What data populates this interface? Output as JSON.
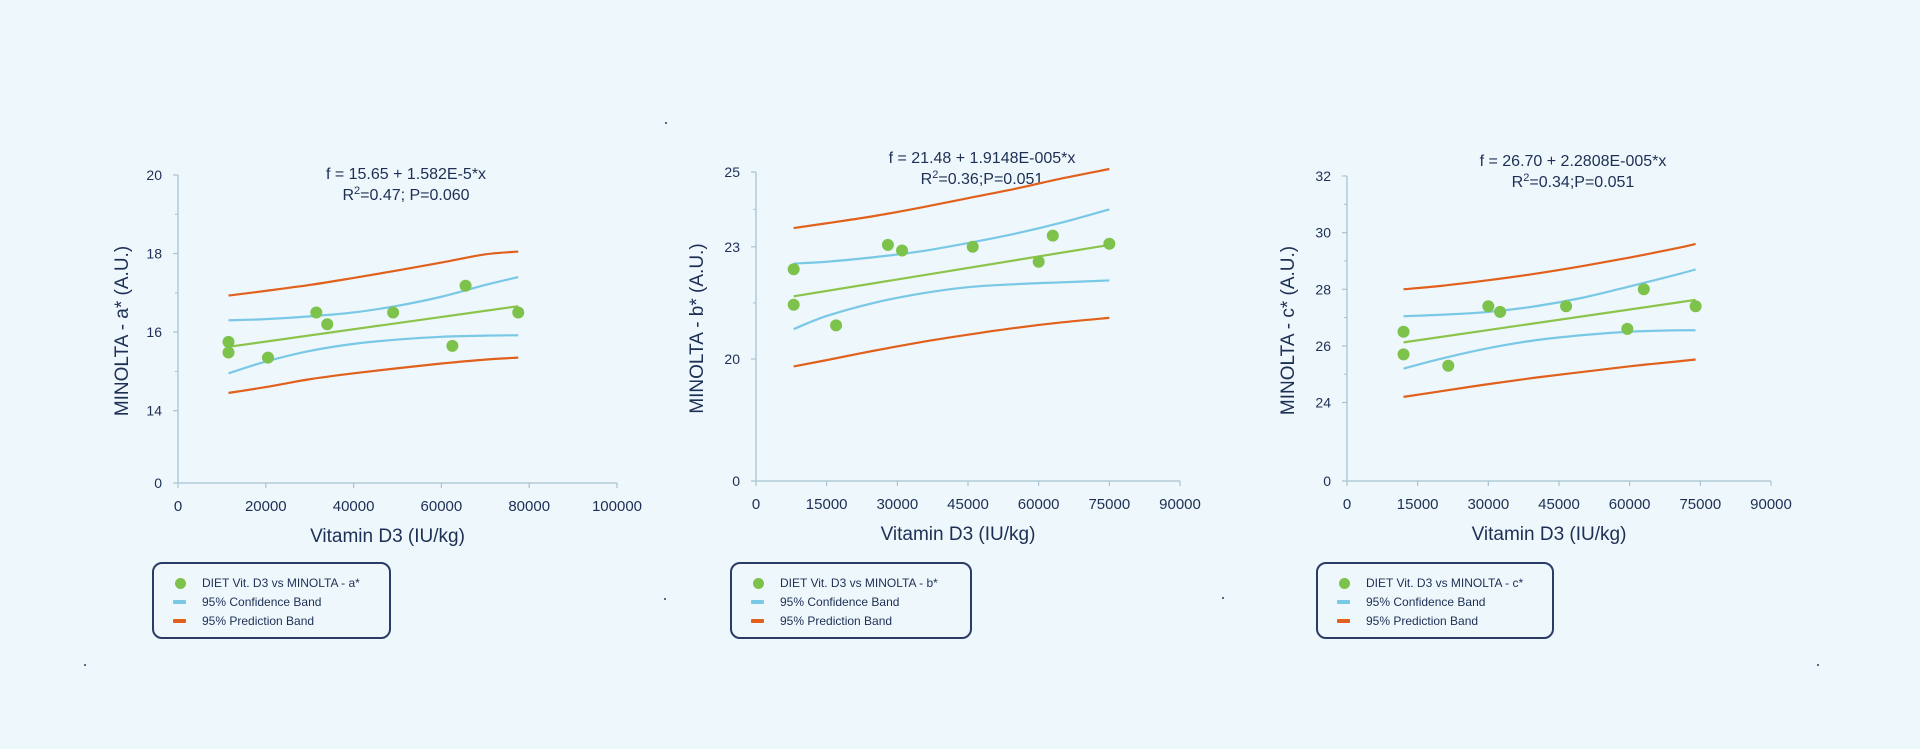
{
  "colors": {
    "background": "#eef7fb",
    "axis": "#a9c3d3",
    "text": "#1d2f55",
    "points": "#7dc24b",
    "fit": "#8cc34a",
    "confidence": "#78c8e6",
    "prediction": "#e0601c"
  },
  "chart_data": [
    {
      "type": "scatter",
      "equation": "f = 15.65 + 1.582E-5*x",
      "r2_prefix": "R",
      "r2_sup": "2",
      "r2_rest": "=0.47; P=0.060",
      "xlabel": "Vitamin D3 (IU/kg)",
      "ylabel": "MINOLTA - a* (A.U.)",
      "xlim": [
        0,
        100000
      ],
      "xticks": [
        0,
        20000,
        40000,
        60000,
        80000,
        100000
      ],
      "xtick_labels": [
        "0",
        "20000",
        "40000",
        "60000",
        "80000",
        "100000"
      ],
      "y_axis_broken": true,
      "y_base_label": "0",
      "ylim": [
        13.1,
        20
      ],
      "yticks": [
        14,
        16,
        18,
        20
      ],
      "ytick_labels": [
        "14",
        "16",
        "18",
        "20"
      ],
      "fit_x": [
        11500,
        77500
      ],
      "confidence_band": {
        "x": [
          11500,
          20000,
          30000,
          40000,
          50000,
          60000,
          70000,
          77500
        ],
        "upper": [
          16.3,
          16.33,
          16.4,
          16.5,
          16.67,
          16.9,
          17.2,
          17.4
        ],
        "lower": [
          14.95,
          15.25,
          15.52,
          15.7,
          15.81,
          15.88,
          15.91,
          15.92
        ]
      },
      "prediction_band": {
        "x": [
          11500,
          20000,
          30000,
          40000,
          50000,
          60000,
          70000,
          77500
        ],
        "upper": [
          16.93,
          17.05,
          17.2,
          17.38,
          17.57,
          17.77,
          17.98,
          18.05
        ],
        "lower": [
          14.45,
          14.6,
          14.8,
          14.95,
          15.08,
          15.2,
          15.3,
          15.35
        ]
      },
      "points": [
        {
          "x": 11500,
          "y": 15.75
        },
        {
          "x": 11500,
          "y": 15.48
        },
        {
          "x": 20500,
          "y": 15.35
        },
        {
          "x": 31500,
          "y": 16.5
        },
        {
          "x": 34000,
          "y": 16.2
        },
        {
          "x": 49000,
          "y": 16.5
        },
        {
          "x": 62500,
          "y": 15.65
        },
        {
          "x": 65500,
          "y": 17.18
        },
        {
          "x": 77500,
          "y": 16.5
        }
      ],
      "legend": {
        "points": "DIET Vit. D3 vs MINOLTA - a*",
        "confidence": "95% Confidence Band",
        "prediction": "95% Prediction Band"
      }
    },
    {
      "type": "scatter",
      "equation": "f = 21.48 + 1.9148E-005*x",
      "r2_prefix": "R",
      "r2_sup": "2",
      "r2_rest": "=0.36;P=0.051",
      "xlabel": "Vitamin D3 (IU/kg)",
      "ylabel": "MINOLTA - b* (A.U.)",
      "xlim": [
        0,
        90000
      ],
      "xticks": [
        0,
        15000,
        30000,
        45000,
        60000,
        75000,
        90000
      ],
      "xtick_labels": [
        "0",
        "15000",
        "30000",
        "45000",
        "60000",
        "75000",
        "90000"
      ],
      "y_axis_broken": true,
      "y_base_label": "0",
      "ylim": [
        17.7,
        25
      ],
      "yticks": [
        20,
        23,
        25
      ],
      "ytick_labels": [
        "20",
        "23",
        "25"
      ],
      "fit_x": [
        8000,
        75000
      ],
      "confidence_band": {
        "x": [
          8000,
          15000,
          25000,
          35000,
          45000,
          55000,
          65000,
          75000
        ],
        "upper": [
          22.55,
          22.6,
          22.72,
          22.88,
          23.1,
          23.35,
          23.65,
          24.0
        ],
        "lower": [
          20.8,
          21.15,
          21.5,
          21.75,
          21.92,
          22.0,
          22.05,
          22.1
        ]
      },
      "prediction_band": {
        "x": [
          8000,
          15000,
          25000,
          35000,
          45000,
          55000,
          65000,
          75000
        ],
        "upper": [
          23.5,
          23.63,
          23.82,
          24.05,
          24.3,
          24.55,
          24.83,
          25.08
        ],
        "lower": [
          19.8,
          19.97,
          20.22,
          20.45,
          20.65,
          20.83,
          20.98,
          21.1
        ]
      },
      "points": [
        {
          "x": 8000,
          "y": 22.4
        },
        {
          "x": 8000,
          "y": 21.45
        },
        {
          "x": 17000,
          "y": 20.9
        },
        {
          "x": 28000,
          "y": 23.05
        },
        {
          "x": 31000,
          "y": 22.9
        },
        {
          "x": 46000,
          "y": 23.0
        },
        {
          "x": 60000,
          "y": 22.6
        },
        {
          "x": 63000,
          "y": 23.3
        },
        {
          "x": 75000,
          "y": 23.08
        }
      ],
      "legend": {
        "points": "DIET Vit. D3 vs MINOLTA - b*",
        "confidence": "95% Confidence Band",
        "prediction": "95% Prediction Band"
      }
    },
    {
      "type": "scatter",
      "equation": "f = 26.70 + 2.2808E-005*x",
      "r2_prefix": "R",
      "r2_sup": "2",
      "r2_rest": "=0.34;P=0.051",
      "xlabel": "Vitamin D3 (IU/kg)",
      "ylabel": "MINOLTA - c* (A.U.)",
      "xlim": [
        0,
        90000
      ],
      "xticks": [
        0,
        15000,
        30000,
        45000,
        60000,
        75000,
        90000
      ],
      "xtick_labels": [
        "0",
        "15000",
        "30000",
        "45000",
        "60000",
        "75000",
        "90000"
      ],
      "y_axis_broken": true,
      "y_base_label": "0",
      "ylim": [
        22.5,
        32
      ],
      "yticks": [
        24,
        26,
        28,
        30,
        32
      ],
      "ytick_labels": [
        "24",
        "26",
        "28",
        "30",
        "32"
      ],
      "fit_x": [
        12000,
        74000
      ],
      "confidence_band": {
        "x": [
          12000,
          20000,
          30000,
          40000,
          50000,
          60000,
          70000,
          74000
        ],
        "upper": [
          27.05,
          27.1,
          27.2,
          27.4,
          27.7,
          28.1,
          28.52,
          28.7
        ],
        "lower": [
          25.2,
          25.55,
          25.92,
          26.2,
          26.38,
          26.5,
          26.55,
          26.55
        ]
      },
      "prediction_band": {
        "x": [
          12000,
          20000,
          30000,
          40000,
          50000,
          60000,
          70000,
          74000
        ],
        "upper": [
          28.0,
          28.12,
          28.32,
          28.55,
          28.82,
          29.12,
          29.45,
          29.6
        ],
        "lower": [
          24.2,
          24.4,
          24.65,
          24.88,
          25.08,
          25.28,
          25.45,
          25.52
        ]
      },
      "points": [
        {
          "x": 12000,
          "y": 26.5
        },
        {
          "x": 12000,
          "y": 25.7
        },
        {
          "x": 21500,
          "y": 25.3
        },
        {
          "x": 30000,
          "y": 27.4
        },
        {
          "x": 32500,
          "y": 27.2
        },
        {
          "x": 46500,
          "y": 27.4
        },
        {
          "x": 59500,
          "y": 26.6
        },
        {
          "x": 63000,
          "y": 28.0
        },
        {
          "x": 74000,
          "y": 27.4
        }
      ],
      "legend": {
        "points": "DIET Vit. D3 vs MINOLTA - c*",
        "confidence": "95% Confidence Band",
        "prediction": "95% Prediction Band"
      }
    }
  ]
}
